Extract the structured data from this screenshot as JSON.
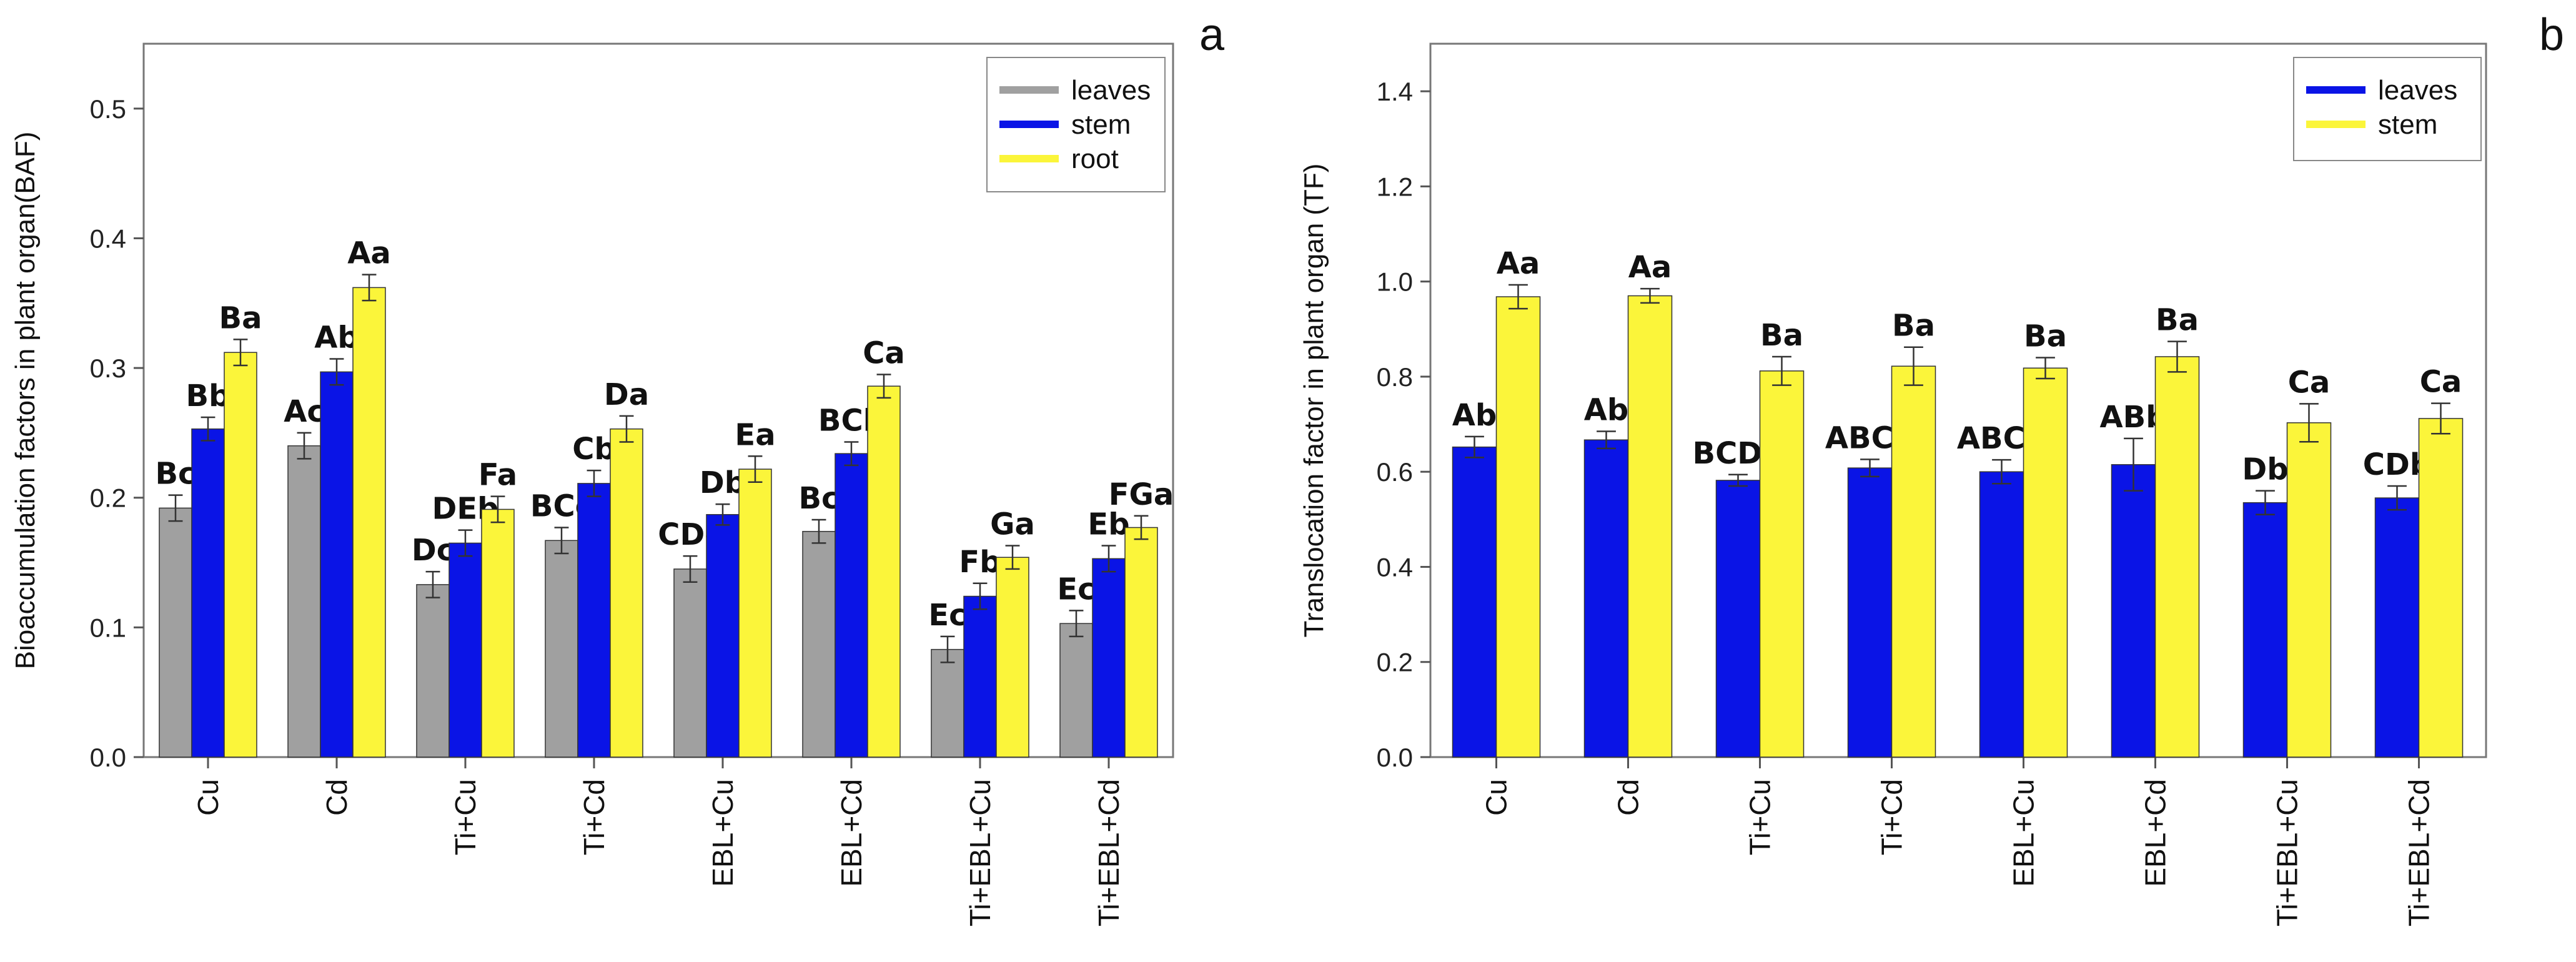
{
  "chart_data": [
    {
      "panel": "a",
      "type": "bar",
      "ylabel": "Bioaccumulation factors in plant organ(BAF)",
      "xlabel": "",
      "ylim": [
        0,
        0.55
      ],
      "yticks": [
        0.0,
        0.1,
        0.2,
        0.3,
        0.4,
        0.5
      ],
      "ytick_labels": [
        "0.0",
        "0.1",
        "0.2",
        "0.3",
        "0.4",
        "0.5"
      ],
      "categories": [
        "Cu",
        "Cd",
        "Ti+Cu",
        "Ti+Cd",
        "EBL+Cu",
        "EBL+Cd",
        "Ti+EBL+Cu",
        "Ti+EBL+Cd"
      ],
      "legend_position": "top-right",
      "series": [
        {
          "name": "leaves",
          "color": "#a0a0a0",
          "values": [
            0.192,
            0.24,
            0.133,
            0.167,
            0.145,
            0.174,
            0.083,
            0.103
          ],
          "errors": [
            0.01,
            0.01,
            0.01,
            0.01,
            0.01,
            0.009,
            0.01,
            0.01
          ],
          "labels": [
            "Bc",
            "Ac",
            "Dc",
            "BCc",
            "CDc",
            "Bc",
            "Ec",
            "Ec"
          ]
        },
        {
          "name": "stem",
          "color": "#0a14e6",
          "values": [
            0.253,
            0.297,
            0.165,
            0.211,
            0.187,
            0.234,
            0.124,
            0.153
          ],
          "errors": [
            0.009,
            0.01,
            0.01,
            0.01,
            0.008,
            0.009,
            0.01,
            0.01
          ],
          "labels": [
            "Bb",
            "Ab",
            "DEb",
            "Cb",
            "Db",
            "BCb",
            "Fb",
            "Eb"
          ]
        },
        {
          "name": "root",
          "color": "#fbf53a",
          "values": [
            0.312,
            0.362,
            0.191,
            0.253,
            0.222,
            0.286,
            0.154,
            0.177
          ],
          "errors": [
            0.01,
            0.01,
            0.01,
            0.01,
            0.01,
            0.009,
            0.009,
            0.009
          ],
          "labels": [
            "Ba",
            "Aa",
            "Fa",
            "Da",
            "Ea",
            "Ca",
            "Ga",
            "FGa"
          ]
        }
      ]
    },
    {
      "panel": "b",
      "type": "bar",
      "ylabel": "Translocation factor in plant organ (TF)",
      "xlabel": "",
      "ylim": [
        0,
        1.5
      ],
      "yticks": [
        0.0,
        0.2,
        0.4,
        0.6,
        0.8,
        1.0,
        1.2,
        1.4
      ],
      "ytick_labels": [
        "0.0",
        "0.2",
        "0.4",
        "0.6",
        "0.8",
        "1.0",
        "1.2",
        "1.4"
      ],
      "categories": [
        "Cu",
        "Cd",
        "Ti+Cu",
        "Ti+Cd",
        "EBL+Cu",
        "EBL+Cd",
        "Ti+EBL+Cu",
        "Ti+EBL+Cd"
      ],
      "legend_position": "top-right",
      "series": [
        {
          "name": "leaves",
          "color": "#0a14e6",
          "values": [
            0.652,
            0.667,
            0.582,
            0.608,
            0.6,
            0.615,
            0.535,
            0.545
          ],
          "errors": [
            0.022,
            0.018,
            0.012,
            0.018,
            0.025,
            0.055,
            0.025,
            0.025
          ],
          "labels": [
            "Ab",
            "Ab",
            "BCDb",
            "ABCb",
            "ABCb",
            "ABb",
            "Db",
            "CDb"
          ]
        },
        {
          "name": "stem",
          "color": "#fbf53a",
          "values": [
            0.968,
            0.97,
            0.812,
            0.822,
            0.818,
            0.842,
            0.703,
            0.712
          ],
          "errors": [
            0.025,
            0.015,
            0.03,
            0.04,
            0.022,
            0.032,
            0.04,
            0.032
          ],
          "labels": [
            "Aa",
            "Aa",
            "Ba",
            "Ba",
            "Ba",
            "Ba",
            "Ca",
            "Ca"
          ]
        }
      ]
    }
  ]
}
